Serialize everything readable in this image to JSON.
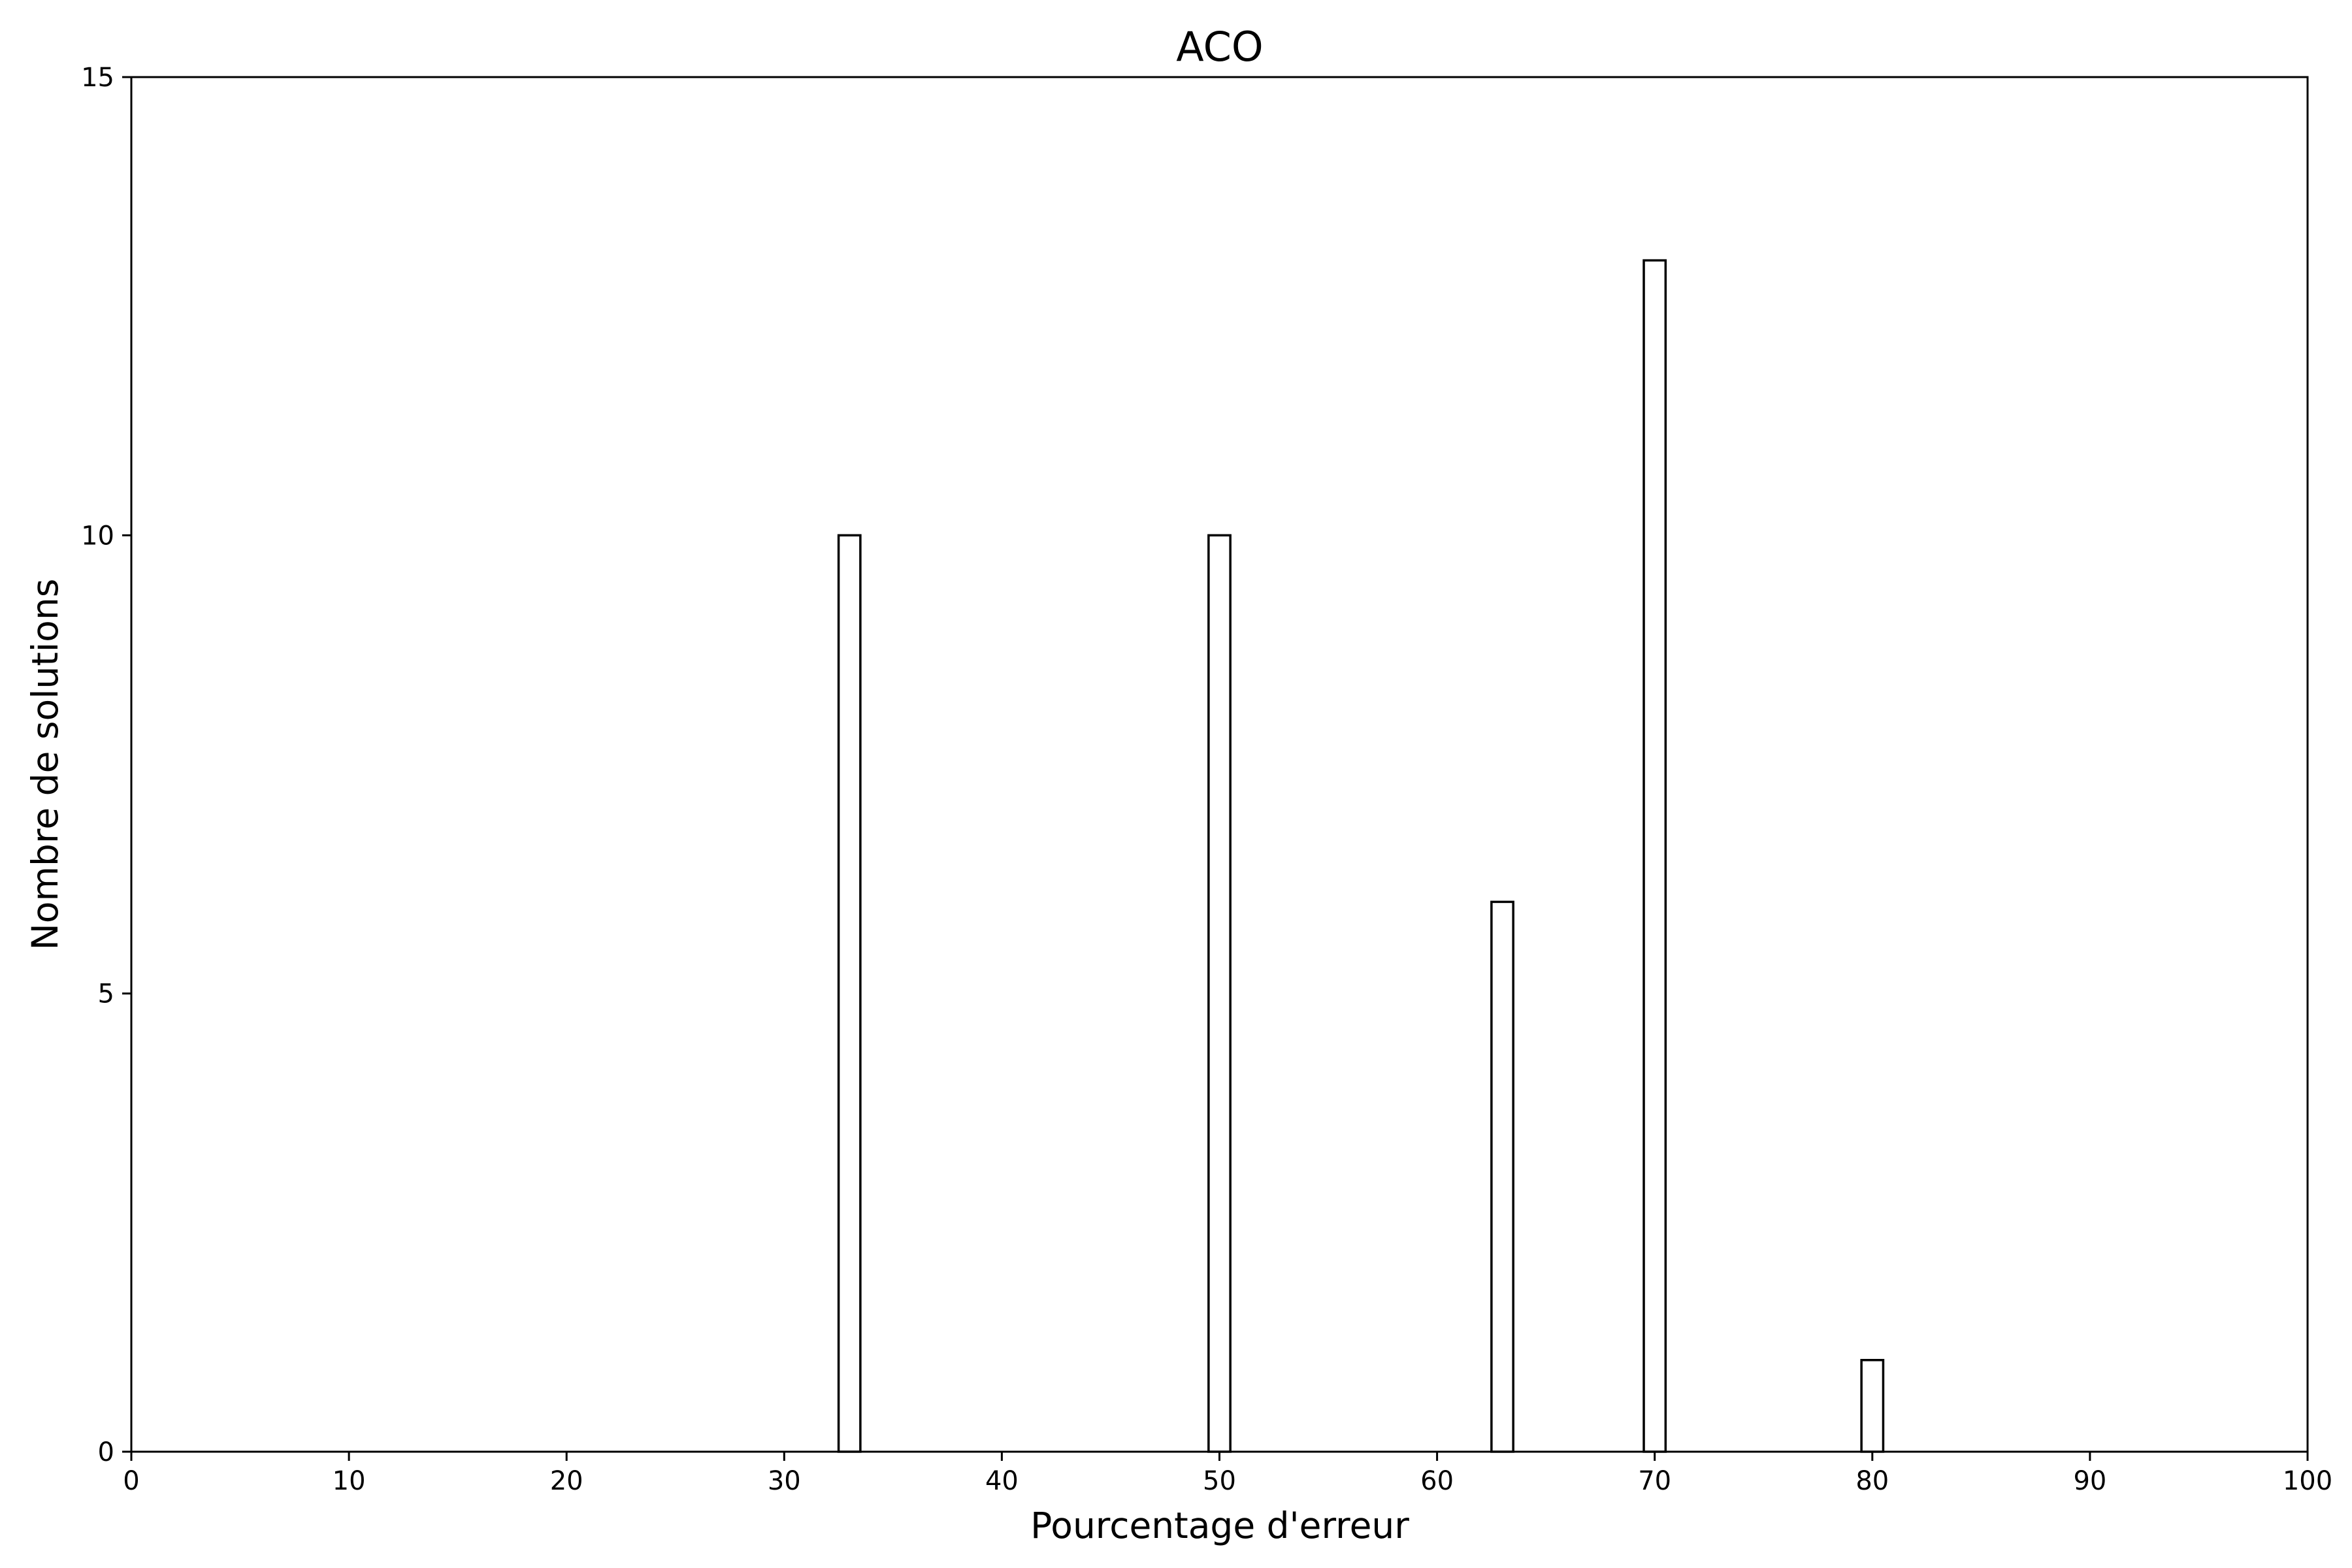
{
  "chart_data": {
    "type": "bar",
    "title": "ACO",
    "xlabel": "Pourcentage d'erreur",
    "ylabel": "Nombre de solutions",
    "xlim": [
      0,
      100
    ],
    "ylim": [
      0,
      15
    ],
    "xticks": [
      0,
      10,
      20,
      30,
      40,
      50,
      60,
      70,
      80,
      90,
      100
    ],
    "yticks": [
      0,
      5,
      10,
      15
    ],
    "bar_width": 1,
    "x": [
      33,
      50,
      63,
      70,
      80
    ],
    "values": [
      10,
      10,
      6,
      13,
      1
    ],
    "bar_fill": "#ffffff",
    "bar_edge": "#000000",
    "grid": false,
    "legend": "none"
  }
}
